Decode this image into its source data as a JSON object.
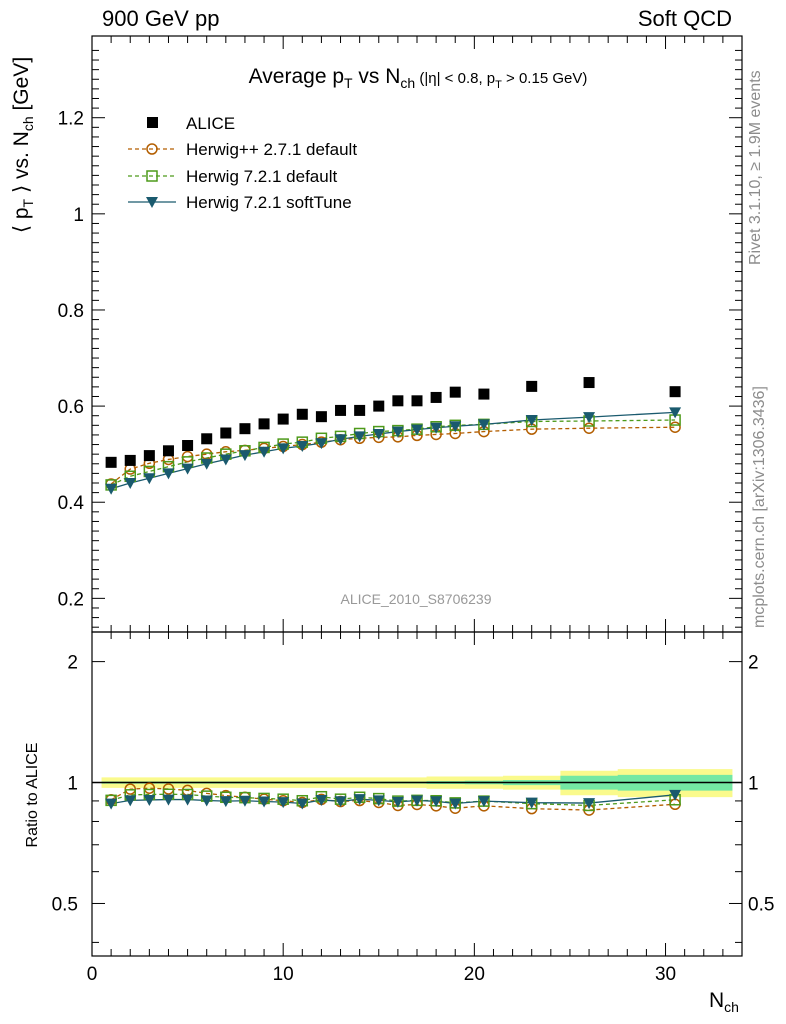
{
  "header": {
    "left": "900 GeV pp",
    "right": "Soft QCD"
  },
  "side_labels": {
    "rivet": "Rivet 3.1.10, ≥ 1.9M events",
    "mcplots": "mcplots.cern.ch [arXiv:1306.3436]"
  },
  "chart_data": {
    "type": "scatter",
    "title": "Average p_T vs N_ch (|η| < 0.8, p_T > 0.15 GeV)",
    "analysis": "ALICE_2010_S8706239",
    "main": {
      "ylabel": "⟨ p_T ⟩ vs. N_ch [GeV]",
      "xlim": [
        0,
        34
      ],
      "ylim": [
        0.13,
        1.37
      ],
      "y_ticks": [
        "0.2",
        "0.4",
        "0.6",
        "0.8",
        "1",
        "1.2"
      ],
      "legend_position": "top-left",
      "series": [
        {
          "name": "ALICE",
          "marker": "square-filled",
          "line": "none",
          "color": "#000000",
          "x": [
            1,
            2,
            3,
            4,
            5,
            6,
            7,
            8,
            9,
            10,
            11,
            12,
            13,
            14,
            15,
            16,
            17,
            18,
            19,
            20.5,
            23,
            26,
            30.5
          ],
          "y": [
            0.483,
            0.487,
            0.497,
            0.507,
            0.518,
            0.532,
            0.544,
            0.553,
            0.563,
            0.573,
            0.583,
            0.578,
            0.591,
            0.591,
            0.6,
            0.611,
            0.611,
            0.618,
            0.629,
            0.625,
            0.641,
            0.649,
            0.63
          ]
        },
        {
          "name": "Herwig++ 2.7.1 default",
          "marker": "circle-open",
          "line": "dashed",
          "color": "#b35e00",
          "x": [
            1,
            2,
            3,
            4,
            5,
            6,
            7,
            8,
            9,
            10,
            11,
            12,
            13,
            14,
            15,
            16,
            17,
            18,
            19,
            20.5,
            23,
            26,
            30.5
          ],
          "y": [
            0.438,
            0.469,
            0.481,
            0.489,
            0.495,
            0.5,
            0.505,
            0.508,
            0.512,
            0.516,
            0.52,
            0.525,
            0.53,
            0.533,
            0.535,
            0.536,
            0.539,
            0.541,
            0.543,
            0.547,
            0.552,
            0.554,
            0.556
          ]
        },
        {
          "name": "Herwig 7.2.1 default",
          "marker": "square-open",
          "line": "dashed",
          "color": "#4d9a1a",
          "x": [
            1,
            2,
            3,
            4,
            5,
            6,
            7,
            8,
            9,
            10,
            11,
            12,
            13,
            14,
            15,
            16,
            17,
            18,
            19,
            20.5,
            23,
            26,
            30.5
          ],
          "y": [
            0.436,
            0.454,
            0.464,
            0.474,
            0.484,
            0.492,
            0.5,
            0.507,
            0.514,
            0.521,
            0.525,
            0.533,
            0.537,
            0.543,
            0.547,
            0.549,
            0.552,
            0.557,
            0.56,
            0.562,
            0.568,
            0.569,
            0.571
          ]
        },
        {
          "name": "Herwig 7.2.1 softTune",
          "marker": "triangle-down-filled",
          "line": "solid",
          "color": "#1a5a6e",
          "x": [
            1,
            2,
            3,
            4,
            5,
            6,
            7,
            8,
            9,
            10,
            11,
            12,
            13,
            14,
            15,
            16,
            17,
            18,
            19,
            20.5,
            23,
            26,
            30.5
          ],
          "y": [
            0.428,
            0.44,
            0.45,
            0.46,
            0.47,
            0.48,
            0.489,
            0.498,
            0.505,
            0.512,
            0.517,
            0.523,
            0.531,
            0.537,
            0.542,
            0.547,
            0.551,
            0.555,
            0.558,
            0.562,
            0.571,
            0.577,
            0.587
          ]
        }
      ]
    },
    "ratio": {
      "ylabel": "Ratio to ALICE",
      "ylim": [
        0.37,
        2.37
      ],
      "y_ticks": [
        "0.5",
        "1",
        "2"
      ],
      "x_ticks": [
        "0",
        "10",
        "20",
        "30"
      ],
      "xlabel": "N_ch",
      "reference_line": 1,
      "band_yellow": {
        "x": [
          0.5,
          1.5,
          2.5,
          3.5,
          4.5,
          5.5,
          6.5,
          7.5,
          8.5,
          9.5,
          10.5,
          11.5,
          12.5,
          13.5,
          14.5,
          15.5,
          16.5,
          17.5,
          18.5,
          19.5,
          21.5,
          24.5,
          27.5,
          33.5
        ],
        "hw": [
          0.03,
          0.03,
          0.03,
          0.03,
          0.03,
          0.03,
          0.03,
          0.03,
          0.03,
          0.03,
          0.03,
          0.03,
          0.03,
          0.03,
          0.03,
          0.03,
          0.03,
          0.035,
          0.035,
          0.035,
          0.04,
          0.07,
          0.08
        ]
      },
      "band_green": {
        "x": [
          0.5,
          1.5,
          2.5,
          3.5,
          4.5,
          5.5,
          6.5,
          7.5,
          8.5,
          9.5,
          10.5,
          11.5,
          12.5,
          13.5,
          14.5,
          15.5,
          16.5,
          17.5,
          18.5,
          19.5,
          21.5,
          24.5,
          27.5,
          33.5
        ],
        "hw": [
          0.006,
          0.006,
          0.006,
          0.006,
          0.006,
          0.006,
          0.006,
          0.006,
          0.006,
          0.006,
          0.006,
          0.006,
          0.006,
          0.006,
          0.006,
          0.006,
          0.006,
          0.008,
          0.008,
          0.01,
          0.015,
          0.04,
          0.045
        ]
      },
      "series": [
        {
          "name": "Herwig++ 2.7.1 default",
          "color": "#b35e00",
          "marker": "circle-open",
          "line": "dashed",
          "y": [
            0.906,
            0.963,
            0.968,
            0.964,
            0.956,
            0.94,
            0.928,
            0.919,
            0.909,
            0.901,
            0.892,
            0.908,
            0.897,
            0.902,
            0.892,
            0.877,
            0.882,
            0.875,
            0.863,
            0.875,
            0.861,
            0.854,
            0.883
          ]
        },
        {
          "name": "Herwig 7.2.1 default",
          "color": "#4d9a1a",
          "marker": "square-open",
          "line": "dashed",
          "y": [
            0.903,
            0.932,
            0.934,
            0.935,
            0.934,
            0.925,
            0.919,
            0.917,
            0.913,
            0.909,
            0.901,
            0.922,
            0.909,
            0.919,
            0.912,
            0.899,
            0.903,
            0.901,
            0.89,
            0.899,
            0.886,
            0.877,
            0.906
          ]
        },
        {
          "name": "Herwig 7.2.1 softTune",
          "color": "#1a5a6e",
          "marker": "triangle-down-filled",
          "line": "solid",
          "y": [
            0.886,
            0.903,
            0.905,
            0.907,
            0.907,
            0.902,
            0.899,
            0.901,
            0.897,
            0.894,
            0.887,
            0.905,
            0.898,
            0.909,
            0.903,
            0.895,
            0.902,
            0.898,
            0.887,
            0.899,
            0.891,
            0.889,
            0.932
          ]
        }
      ]
    }
  }
}
